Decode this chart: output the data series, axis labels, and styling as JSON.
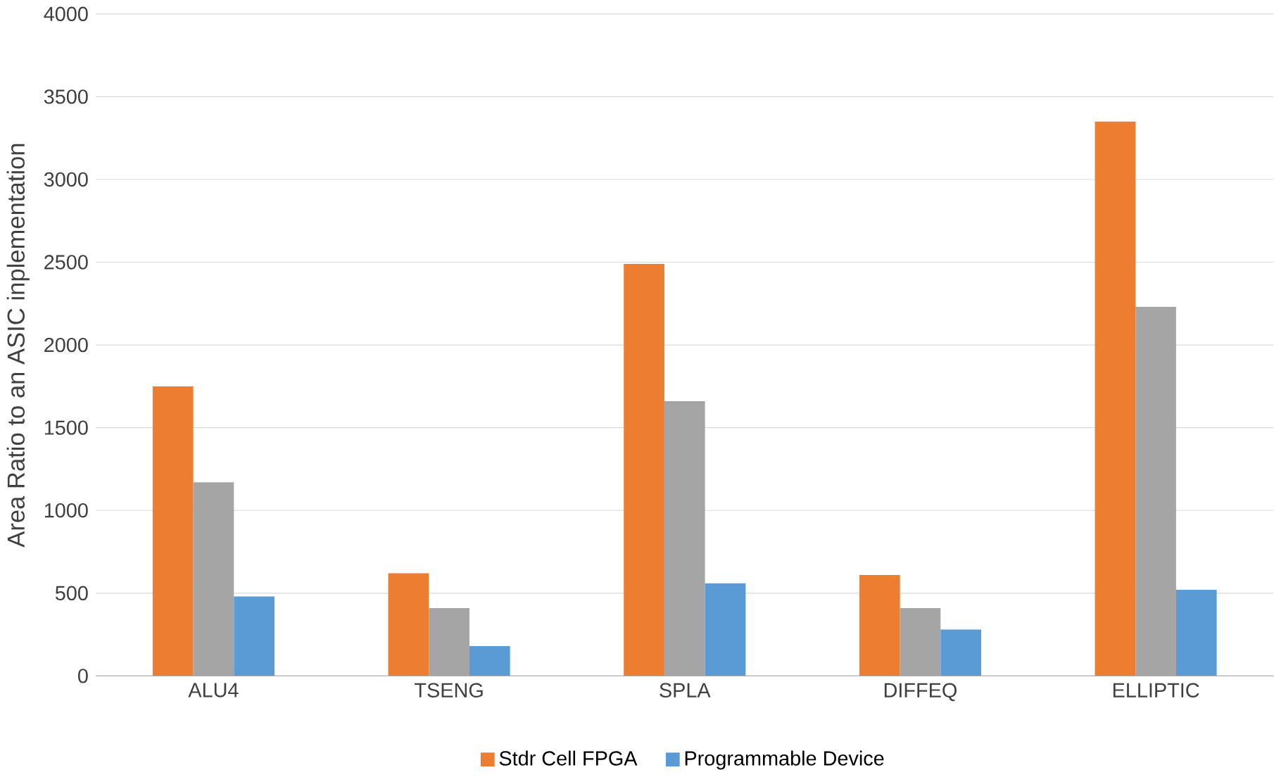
{
  "chart_data": {
    "type": "bar",
    "ylabel": "Area Ratio to an ASIC inplementation",
    "categories": [
      "ALU4",
      "TSENG",
      "SPLA",
      "DIFFEQ",
      "ELLIPTIC"
    ],
    "series": [
      {
        "name": "Stdr Cell FPGA",
        "color": "#ed7d31",
        "values": [
          1750,
          620,
          2490,
          610,
          3350
        ]
      },
      {
        "color": "#a5a5a5",
        "values": [
          1170,
          410,
          1660,
          410,
          2230
        ]
      },
      {
        "name": "Programmable Device",
        "color": "#5b9bd5",
        "values": [
          480,
          180,
          560,
          280,
          520
        ]
      }
    ],
    "ylim": [
      0,
      4000
    ],
    "yticks": [
      0,
      500,
      1000,
      1500,
      2000,
      2500,
      3000,
      3500,
      4000
    ],
    "grid": "y",
    "legend": "bottom"
  }
}
